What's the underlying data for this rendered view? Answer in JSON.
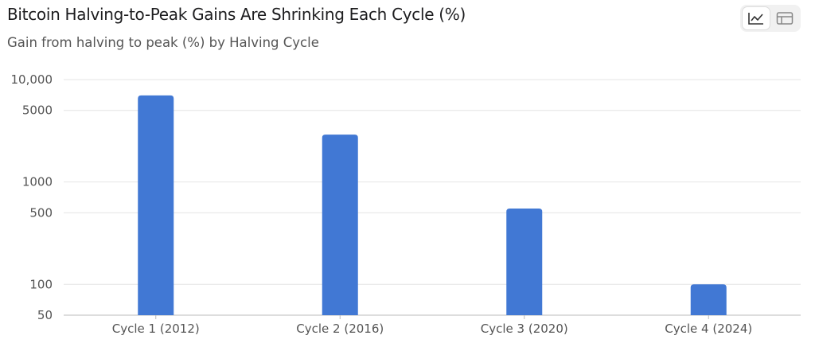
{
  "header": {
    "title": "Bitcoin Halving-to-Peak Gains Are Shrinking Each Cycle (%)",
    "subtitle": "Gain from halving to peak (%) by Halving Cycle"
  },
  "view_toggle": {
    "active": "chart",
    "options": [
      {
        "icon": "line-chart-icon"
      },
      {
        "icon": "table-icon"
      }
    ]
  },
  "colors": {
    "bar": "#4178d4",
    "grid": "#e4e4e4",
    "axis": "#bbbbbb"
  },
  "chart_data": {
    "type": "bar",
    "title": "Bitcoin Halving-to-Peak Gains Are Shrinking Each Cycle (%)",
    "subtitle": "Gain from halving to peak (%) by Halving Cycle",
    "categories": [
      "Cycle 1 (2012)",
      "Cycle 2 (2016)",
      "Cycle 3 (2020)",
      "Cycle 4 (2024)"
    ],
    "values": [
      7000,
      2900,
      550,
      100
    ],
    "xlabel": "",
    "ylabel": "",
    "yscale": "log",
    "ylim": [
      50,
      10000
    ],
    "yticks": [
      50,
      100,
      500,
      1000,
      5000,
      10000
    ],
    "ytick_labels": [
      "50",
      "100",
      "500",
      "1000",
      "5000",
      "10,000"
    ],
    "grid": true,
    "legend": "none"
  }
}
